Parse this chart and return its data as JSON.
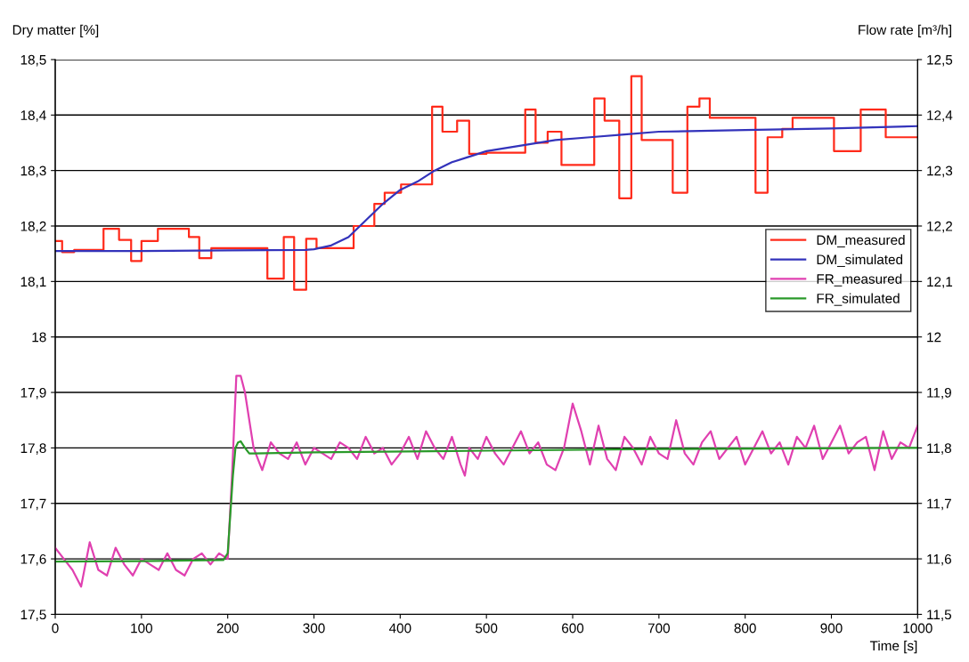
{
  "chart_data": {
    "type": "line",
    "xlabel": "Time [s]",
    "ylabel": "Dry matter [%]",
    "y2label": "Flow rate [m³/h]",
    "xlim": [
      0,
      1000
    ],
    "xticks": [
      0,
      100,
      200,
      300,
      400,
      500,
      600,
      700,
      800,
      900,
      1000
    ],
    "ylim": [
      17.5,
      18.5
    ],
    "yticks": [
      {
        "value": 17.5,
        "label": "17,5"
      },
      {
        "value": 17.6,
        "label": "17,6"
      },
      {
        "value": 17.7,
        "label": "17,7"
      },
      {
        "value": 17.8,
        "label": "17,8"
      },
      {
        "value": 17.9,
        "label": "17,9"
      },
      {
        "value": 18,
        "label": "18"
      },
      {
        "value": 18.1,
        "label": "18,1"
      },
      {
        "value": 18.2,
        "label": "18,2"
      },
      {
        "value": 18.3,
        "label": "18,3"
      },
      {
        "value": 18.4,
        "label": "18,4"
      },
      {
        "value": 18.5,
        "label": "18,5"
      }
    ],
    "y2lim": [
      11.5,
      12.5
    ],
    "y2ticks": [
      {
        "value": 11.5,
        "label": "11,5"
      },
      {
        "value": 11.6,
        "label": "11,6"
      },
      {
        "value": 11.7,
        "label": "11,7"
      },
      {
        "value": 11.8,
        "label": "11,8"
      },
      {
        "value": 11.9,
        "label": "11,9"
      },
      {
        "value": 12,
        "label": "12"
      },
      {
        "value": 12.1,
        "label": "12,1"
      },
      {
        "value": 12.2,
        "label": "12,2"
      },
      {
        "value": 12.3,
        "label": "12,3"
      },
      {
        "value": 12.4,
        "label": "12,4"
      },
      {
        "value": 12.5,
        "label": "12,5"
      }
    ],
    "grid": "y",
    "legend": "right",
    "marker": "none",
    "line_style": "solid",
    "series": [
      {
        "name": "DM_measured",
        "color": "#ff2a1a",
        "type": "step",
        "x": [
          0,
          8,
          22,
          56,
          74,
          88,
          100,
          119,
          155,
          167,
          181,
          246,
          265,
          277,
          291,
          303,
          346,
          370,
          382,
          401,
          437,
          449,
          466,
          480,
          500,
          545,
          557,
          571,
          587,
          625,
          637,
          654,
          668,
          680,
          716,
          733,
          747,
          759,
          812,
          826,
          843,
          855,
          903,
          934,
          963,
          1000
        ],
        "values": [
          18.173,
          18.153,
          18.157,
          18.195,
          18.175,
          18.137,
          18.173,
          18.195,
          18.18,
          18.142,
          18.16,
          18.105,
          18.18,
          18.085,
          18.177,
          18.16,
          18.2,
          18.24,
          18.26,
          18.275,
          18.415,
          18.37,
          18.39,
          18.33,
          18.332,
          18.41,
          18.35,
          18.37,
          18.31,
          18.43,
          18.39,
          18.25,
          18.47,
          18.355,
          18.26,
          18.415,
          18.43,
          18.395,
          18.26,
          18.36,
          18.375,
          18.395,
          18.335,
          18.41,
          18.36,
          18.36
        ]
      },
      {
        "name": "DM_simulated",
        "color": "#3333bb",
        "x": [
          0,
          100,
          200,
          290,
          300,
          320,
          340,
          360,
          380,
          400,
          420,
          440,
          460,
          480,
          500,
          540,
          580,
          620,
          660,
          700,
          800,
          900,
          1000
        ],
        "values": [
          18.155,
          18.155,
          18.156,
          18.157,
          18.158,
          18.165,
          18.18,
          18.21,
          18.24,
          18.265,
          18.28,
          18.3,
          18.315,
          18.325,
          18.335,
          18.345,
          18.355,
          18.36,
          18.365,
          18.37,
          18.373,
          18.376,
          18.38
        ]
      },
      {
        "name": "FR_measured",
        "color": "#e040b0",
        "axis": "y2",
        "x": [
          0,
          10,
          20,
          30,
          40,
          50,
          60,
          70,
          80,
          90,
          100,
          110,
          120,
          130,
          140,
          150,
          160,
          170,
          180,
          190,
          200,
          205,
          210,
          215,
          220,
          230,
          240,
          250,
          260,
          270,
          280,
          290,
          300,
          310,
          320,
          330,
          340,
          350,
          360,
          370,
          380,
          390,
          400,
          410,
          420,
          430,
          440,
          450,
          460,
          470,
          475,
          480,
          490,
          500,
          510,
          520,
          530,
          540,
          550,
          560,
          570,
          580,
          590,
          600,
          610,
          620,
          630,
          640,
          650,
          660,
          670,
          680,
          690,
          700,
          710,
          720,
          730,
          740,
          750,
          760,
          770,
          780,
          790,
          800,
          810,
          820,
          830,
          840,
          850,
          860,
          870,
          880,
          890,
          900,
          910,
          920,
          930,
          940,
          950,
          960,
          970,
          980,
          990,
          1000
        ],
        "values": [
          11.62,
          11.6,
          11.58,
          11.55,
          11.63,
          11.58,
          11.57,
          11.62,
          11.59,
          11.57,
          11.6,
          11.59,
          11.58,
          11.61,
          11.58,
          11.57,
          11.6,
          11.61,
          11.59,
          11.61,
          11.6,
          11.75,
          11.93,
          11.93,
          11.9,
          11.8,
          11.76,
          11.81,
          11.79,
          11.78,
          11.81,
          11.77,
          11.8,
          11.79,
          11.78,
          11.81,
          11.8,
          11.78,
          11.82,
          11.79,
          11.8,
          11.77,
          11.79,
          11.82,
          11.78,
          11.83,
          11.8,
          11.78,
          11.82,
          11.77,
          11.75,
          11.8,
          11.78,
          11.82,
          11.79,
          11.77,
          11.8,
          11.83,
          11.79,
          11.81,
          11.77,
          11.76,
          11.8,
          11.88,
          11.83,
          11.77,
          11.84,
          11.78,
          11.76,
          11.82,
          11.8,
          11.77,
          11.82,
          11.79,
          11.78,
          11.85,
          11.79,
          11.77,
          11.81,
          11.83,
          11.78,
          11.8,
          11.82,
          11.77,
          11.8,
          11.83,
          11.79,
          11.81,
          11.77,
          11.82,
          11.8,
          11.84,
          11.78,
          11.81,
          11.84,
          11.79,
          11.81,
          11.82,
          11.76,
          11.83,
          11.78,
          11.81,
          11.8,
          11.84
        ]
      },
      {
        "name": "FR_simulated",
        "color": "#2a9a2a",
        "axis": "y2",
        "x": [
          0,
          100,
          195,
          200,
          203,
          206,
          209,
          212,
          215,
          220,
          225,
          230,
          300,
          500,
          700,
          1000
        ],
        "values": [
          11.595,
          11.596,
          11.598,
          11.61,
          11.68,
          11.75,
          11.8,
          11.81,
          11.812,
          11.8,
          11.79,
          11.79,
          11.792,
          11.795,
          11.798,
          11.8
        ]
      }
    ]
  }
}
